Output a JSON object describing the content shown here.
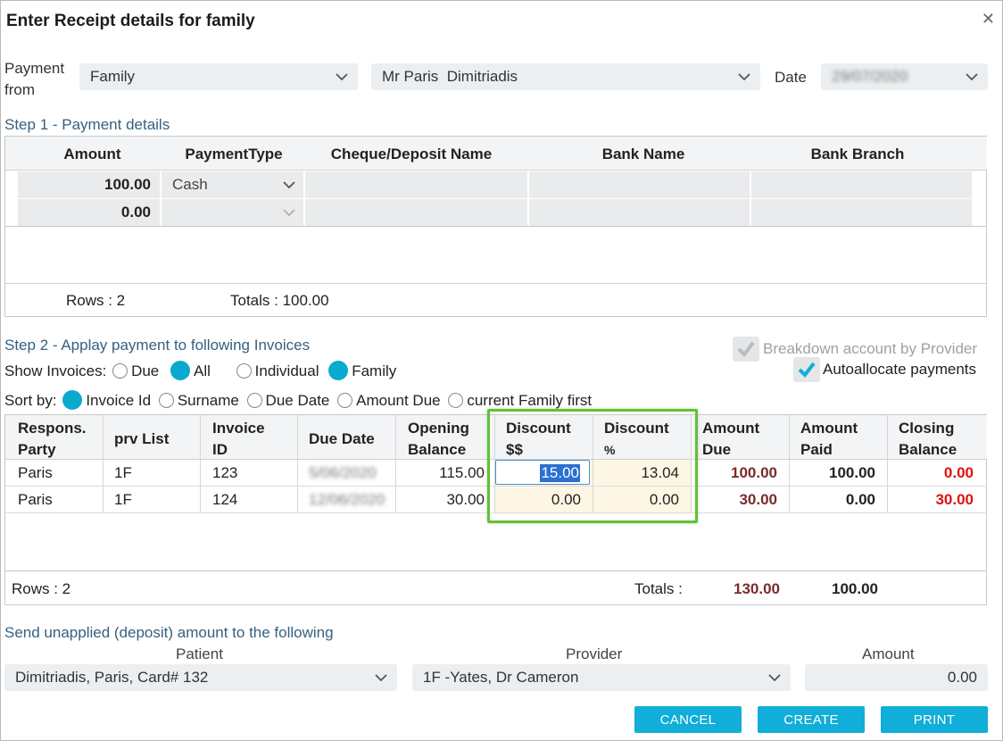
{
  "dialog": {
    "title": "Enter Receipt details for family"
  },
  "header": {
    "payment_from_label": "Payment from",
    "payment_from_type": "Family",
    "payer": "Mr Paris  Dimitriadis",
    "date_label": "Date",
    "date_value": "29/07/2020"
  },
  "step1": {
    "title": "Step 1 - Payment details",
    "columns": [
      "Amount",
      "PaymentType",
      "Cheque/Deposit Name",
      "Bank Name",
      "Bank Branch"
    ],
    "rows": [
      {
        "amount": "100.00",
        "payment_type": "Cash",
        "cheque_name": "",
        "bank_name": "",
        "bank_branch": ""
      },
      {
        "amount": "0.00",
        "payment_type": "",
        "cheque_name": "",
        "bank_name": "",
        "bank_branch": ""
      }
    ],
    "rows_label": "Rows : 2",
    "totals_label": "Totals : 100.00"
  },
  "step2": {
    "title": "Step 2 - Applay payment to following Invoices",
    "show_invoices_label": "Show Invoices:",
    "show_options": [
      {
        "label": "Due",
        "selected": false
      },
      {
        "label": "All",
        "selected": true
      },
      {
        "label": "Individual",
        "selected": false
      },
      {
        "label": "Family",
        "selected": true
      }
    ],
    "sort_label": "Sort by:",
    "sort_options": [
      {
        "label": "Invoice Id",
        "selected": true
      },
      {
        "label": "Surname",
        "selected": false
      },
      {
        "label": "Due Date",
        "selected": false
      },
      {
        "label": "Amount Due",
        "selected": false
      },
      {
        "label": "current Family first",
        "selected": false
      }
    ],
    "breakdown_label": "Breakdown account by Provider",
    "autoallocate_label": "Autoallocate payments",
    "columns": [
      {
        "line1": "Respons.",
        "line2": "Party"
      },
      {
        "line1": "prv List",
        "line2": ""
      },
      {
        "line1": "Invoice",
        "line2": "ID"
      },
      {
        "line1": "Due Date",
        "line2": ""
      },
      {
        "line1": "Opening",
        "line2": "Balance"
      },
      {
        "line1": "Discount",
        "line2": "$$"
      },
      {
        "line1": "Discount",
        "line2": "%"
      },
      {
        "line1": "Amount",
        "line2": "Due"
      },
      {
        "line1": "Amount",
        "line2": "Paid"
      },
      {
        "line1": "Closing",
        "line2": "Balance"
      }
    ],
    "rows": [
      {
        "party": "Paris",
        "prv": "1F",
        "invoice": "123",
        "due_date": "5/06/2020",
        "opening": "115.00",
        "disc_amt": "15.00",
        "disc_pct": "13.04",
        "amount_due": "100.00",
        "amount_paid": "100.00",
        "closing": "0.00"
      },
      {
        "party": "Paris",
        "prv": "1F",
        "invoice": "124",
        "due_date": "12/06/2020",
        "opening": "30.00",
        "disc_amt": "0.00",
        "disc_pct": "0.00",
        "amount_due": "30.00",
        "amount_paid": "0.00",
        "closing": "30.00"
      }
    ],
    "rows_label": "Rows : 2",
    "totals_label": "Totals :",
    "total_due": "130.00",
    "total_paid": "100.00"
  },
  "deposit": {
    "title": "Send unapplied (deposit) amount to the following",
    "patient_label": "Patient",
    "patient_value": "Dimitriadis, Paris, Card# 132",
    "provider_label": "Provider",
    "provider_value": "1F -Yates, Dr Cameron",
    "amount_label": "Amount",
    "amount_value": "0.00"
  },
  "buttons": {
    "cancel": "CANCEL",
    "create": "CREATE",
    "print": "PRINT"
  },
  "colors": {
    "accent": "#10aed9",
    "highlight": "#5ec332",
    "negative": "#e01010",
    "due": "#7b2a2a"
  }
}
